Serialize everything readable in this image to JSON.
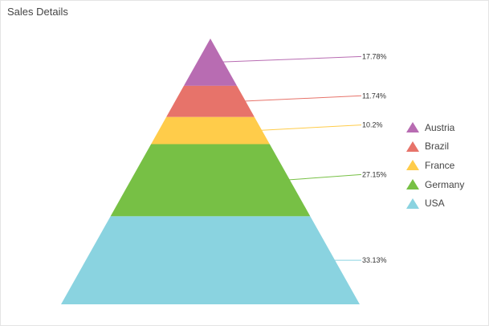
{
  "card": {
    "title": "Sales Details"
  },
  "chart_data": {
    "type": "pyramid",
    "title": "Sales Details",
    "legend_position": "right",
    "series": [
      {
        "name": "Austria",
        "percent": 17.78,
        "label": "17.78%",
        "color": "#B86CB2"
      },
      {
        "name": "Brazil",
        "percent": 11.74,
        "label": "11.74%",
        "color": "#E7736A"
      },
      {
        "name": "France",
        "percent": 10.2,
        "label": "10.2%",
        "color": "#FFCC4A"
      },
      {
        "name": "Germany",
        "percent": 27.15,
        "label": "27.15%",
        "color": "#77C045"
      },
      {
        "name": "USA",
        "percent": 33.13,
        "label": "33.13%",
        "color": "#8AD3E0"
      }
    ]
  }
}
